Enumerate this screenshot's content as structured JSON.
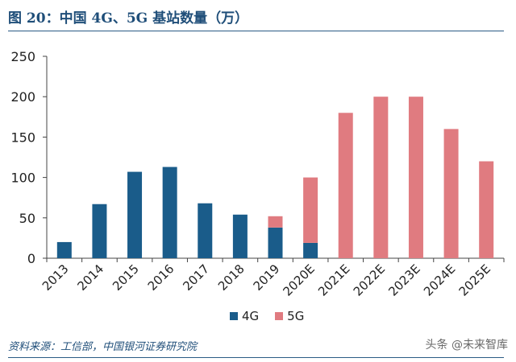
{
  "figure": {
    "title": "图 20：中国 4G、5G 基站数量（万）",
    "source": "资料来源：工信部，中国银河证券研究院",
    "watermark": "头条 @未来智库"
  },
  "legend": {
    "items": [
      {
        "label": "4G",
        "color": "#1a5c8a"
      },
      {
        "label": "5G",
        "color": "#e07b80"
      }
    ]
  },
  "chart_data": {
    "type": "bar",
    "stacked": true,
    "categories": [
      "2013",
      "2014",
      "2015",
      "2016",
      "2017",
      "2018",
      "2019",
      "2020E",
      "2021E",
      "2022E",
      "2023E",
      "2024E",
      "2025E"
    ],
    "series": [
      {
        "name": "4G",
        "color": "#1a5c8a",
        "values": [
          20,
          67,
          107,
          113,
          68,
          54,
          38,
          19,
          0,
          0,
          0,
          0,
          0
        ]
      },
      {
        "name": "5G",
        "color": "#e07b80",
        "values": [
          0,
          0,
          0,
          0,
          0,
          0,
          14,
          81,
          180,
          200,
          200,
          160,
          120
        ]
      }
    ],
    "ylim": [
      0,
      250
    ],
    "yticks": [
      0,
      50,
      100,
      150,
      200,
      250
    ],
    "grid": false,
    "legend_position": "bottom"
  }
}
